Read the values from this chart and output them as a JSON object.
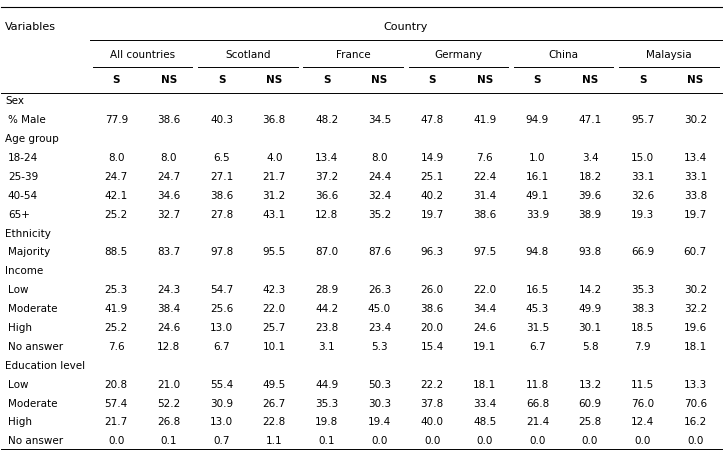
{
  "title_row": "Country",
  "col_group_headers": [
    "All countries",
    "Scotland",
    "France",
    "Germany",
    "China",
    "Malaysia"
  ],
  "col_subheaders": [
    "S",
    "NS"
  ],
  "row_sections": [
    {
      "section": "Sex",
      "rows": [
        {
          "label": "% Male",
          "values": [
            "77.9",
            "38.6",
            "40.3",
            "36.8",
            "48.2",
            "34.5",
            "47.8",
            "41.9",
            "94.9",
            "47.1",
            "95.7",
            "30.2"
          ]
        }
      ]
    },
    {
      "section": "Age group",
      "rows": [
        {
          "label": "18-24",
          "values": [
            "8.0",
            "8.0",
            "6.5",
            "4.0",
            "13.4",
            "8.0",
            "14.9",
            "7.6",
            "1.0",
            "3.4",
            "15.0",
            "13.4"
          ]
        },
        {
          "label": "25-39",
          "values": [
            "24.7",
            "24.7",
            "27.1",
            "21.7",
            "37.2",
            "24.4",
            "25.1",
            "22.4",
            "16.1",
            "18.2",
            "33.1",
            "33.1"
          ]
        },
        {
          "label": "40-54",
          "values": [
            "42.1",
            "34.6",
            "38.6",
            "31.2",
            "36.6",
            "32.4",
            "40.2",
            "31.4",
            "49.1",
            "39.6",
            "32.6",
            "33.8"
          ]
        },
        {
          "label": "65+",
          "values": [
            "25.2",
            "32.7",
            "27.8",
            "43.1",
            "12.8",
            "35.2",
            "19.7",
            "38.6",
            "33.9",
            "38.9",
            "19.3",
            "19.7"
          ]
        }
      ]
    },
    {
      "section": "Ethnicity",
      "rows": [
        {
          "label": "Majority",
          "values": [
            "88.5",
            "83.7",
            "97.8",
            "95.5",
            "87.0",
            "87.6",
            "96.3",
            "97.5",
            "94.8",
            "93.8",
            "66.9",
            "60.7"
          ]
        }
      ]
    },
    {
      "section": "Income",
      "rows": [
        {
          "label": "Low",
          "values": [
            "25.3",
            "24.3",
            "54.7",
            "42.3",
            "28.9",
            "26.3",
            "26.0",
            "22.0",
            "16.5",
            "14.2",
            "35.3",
            "30.2"
          ]
        },
        {
          "label": "Moderate",
          "values": [
            "41.9",
            "38.4",
            "25.6",
            "22.0",
            "44.2",
            "45.0",
            "38.6",
            "34.4",
            "45.3",
            "49.9",
            "38.3",
            "32.2"
          ]
        },
        {
          "label": "High",
          "values": [
            "25.2",
            "24.6",
            "13.0",
            "25.7",
            "23.8",
            "23.4",
            "20.0",
            "24.6",
            "31.5",
            "30.1",
            "18.5",
            "19.6"
          ]
        },
        {
          "label": "No answer",
          "values": [
            "7.6",
            "12.8",
            "6.7",
            "10.1",
            "3.1",
            "5.3",
            "15.4",
            "19.1",
            "6.7",
            "5.8",
            "7.9",
            "18.1"
          ]
        }
      ]
    },
    {
      "section": "Education level",
      "rows": [
        {
          "label": "Low",
          "values": [
            "20.8",
            "21.0",
            "55.4",
            "49.5",
            "44.9",
            "50.3",
            "22.2",
            "18.1",
            "11.8",
            "13.2",
            "11.5",
            "13.3"
          ]
        },
        {
          "label": "Moderate",
          "values": [
            "57.4",
            "52.2",
            "30.9",
            "26.7",
            "35.3",
            "30.3",
            "37.8",
            "33.4",
            "66.8",
            "60.9",
            "76.0",
            "70.6"
          ]
        },
        {
          "label": "High",
          "values": [
            "21.7",
            "26.8",
            "13.0",
            "22.8",
            "19.8",
            "19.4",
            "40.0",
            "48.5",
            "21.4",
            "25.8",
            "12.4",
            "16.2"
          ]
        },
        {
          "label": "No answer",
          "values": [
            "0.0",
            "0.1",
            "0.7",
            "1.1",
            "0.1",
            "0.0",
            "0.0",
            "0.0",
            "0.0",
            "0.0",
            "0.0",
            "0.0"
          ]
        }
      ]
    }
  ],
  "variables_label": "Variables",
  "bg_color": "#ffffff",
  "text_color": "#000000",
  "line_color": "#000000",
  "font_size": 7.5,
  "header_font_size": 8.0,
  "section_font_size": 7.5
}
